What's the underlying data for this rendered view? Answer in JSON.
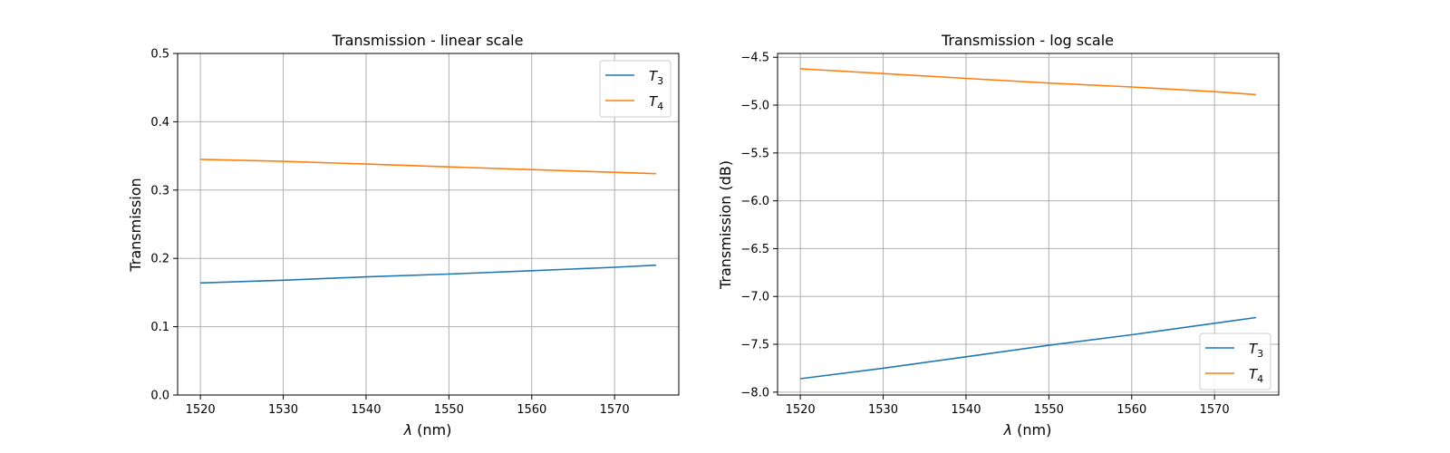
{
  "chart_data": [
    {
      "type": "line",
      "title": "Transmission - linear scale",
      "xlabel_symbol": "λ",
      "xlabel_unit": " (nm)",
      "ylabel": "Transmission",
      "xlim": [
        1517.25,
        1577.75
      ],
      "ylim": [
        0,
        0.5
      ],
      "xticks": [
        1520,
        1530,
        1540,
        1550,
        1560,
        1570
      ],
      "yticks": [
        0.0,
        0.1,
        0.2,
        0.3,
        0.4,
        0.5
      ],
      "ytick_labels": [
        "0.0",
        "0.1",
        "0.2",
        "0.3",
        "0.4",
        "0.5"
      ],
      "grid": true,
      "legend_position": "top-right",
      "x": [
        1520,
        1530,
        1540,
        1550,
        1560,
        1570,
        1575
      ],
      "series": [
        {
          "name_base": "T",
          "name_sub": "3",
          "color": "#1f77b4",
          "values": [
            0.164,
            0.168,
            0.173,
            0.177,
            0.182,
            0.187,
            0.19
          ]
        },
        {
          "name_base": "T",
          "name_sub": "4",
          "color": "#ff7f0e",
          "values": [
            0.345,
            0.342,
            0.338,
            0.334,
            0.33,
            0.326,
            0.324
          ]
        }
      ]
    },
    {
      "type": "line",
      "title": "Transmission - log scale",
      "xlabel_symbol": "λ",
      "xlabel_unit": " (nm)",
      "ylabel": "Transmission (dB)",
      "xlim": [
        1517.25,
        1577.75
      ],
      "ylim": [
        -8.03,
        -4.46
      ],
      "xticks": [
        1520,
        1530,
        1540,
        1550,
        1560,
        1570
      ],
      "yticks": [
        -8.0,
        -7.5,
        -7.0,
        -6.5,
        -6.0,
        -5.5,
        -5.0,
        -4.5
      ],
      "ytick_labels": [
        "−8.0",
        "−7.5",
        "−7.0",
        "−6.5",
        "−6.0",
        "−5.5",
        "−5.0",
        "−4.5"
      ],
      "grid": true,
      "legend_position": "bottom-right",
      "x": [
        1520,
        1530,
        1540,
        1550,
        1560,
        1570,
        1575
      ],
      "series": [
        {
          "name_base": "T",
          "name_sub": "3",
          "color": "#1f77b4",
          "values": [
            -7.86,
            -7.75,
            -7.63,
            -7.51,
            -7.4,
            -7.28,
            -7.22
          ]
        },
        {
          "name_base": "T",
          "name_sub": "4",
          "color": "#ff7f0e",
          "values": [
            -4.62,
            -4.67,
            -4.72,
            -4.77,
            -4.81,
            -4.86,
            -4.89
          ]
        }
      ]
    }
  ]
}
